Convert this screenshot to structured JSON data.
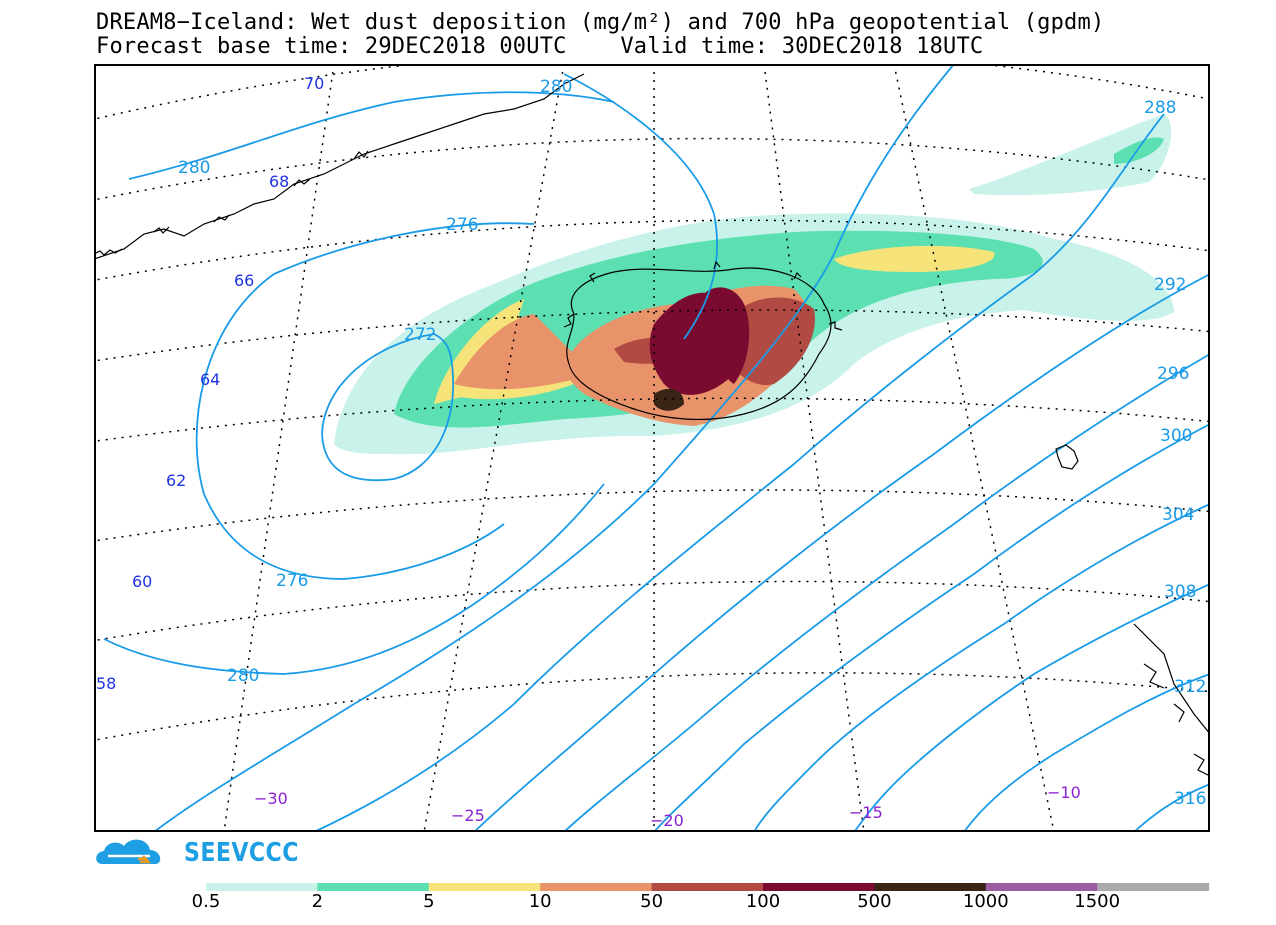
{
  "header": {
    "title_line1": "DREAM8−Iceland: Wet dust deposition (mg/m²) and 700 hPa geopotential (gpdm)",
    "title_line2": "Forecast base time: 29DEC2018 00UTC    Valid time: 30DEC2018 18UTC"
  },
  "map": {
    "lat_labels": [
      "70",
      "68",
      "66",
      "64",
      "62",
      "60",
      "58"
    ],
    "lon_labels": [
      "−30",
      "−25",
      "−20",
      "−15",
      "−10"
    ],
    "contour_labels": [
      "280",
      "280",
      "276",
      "276",
      "272",
      "280",
      "288",
      "292",
      "296",
      "300",
      "304",
      "308",
      "312",
      "316"
    ],
    "colors": {
      "contour": "#1a9be8",
      "lat_label": "#2035e0",
      "lon_label": "#8a1fd0",
      "grid": "#000000"
    }
  },
  "logo": {
    "text": "SEEVCCC",
    "color": "#1e9ee3"
  },
  "legend": {
    "labels": [
      "0.5",
      "2",
      "5",
      "10",
      "50",
      "100",
      "500",
      "1000",
      "1500"
    ],
    "colors": [
      "#c8f2ea",
      "#5ce0b2",
      "#f6e47a",
      "#e8936a",
      "#b04a42",
      "#7a0a30",
      "#3a2416",
      "#9a5ea0",
      "#aaaaaa"
    ]
  }
}
